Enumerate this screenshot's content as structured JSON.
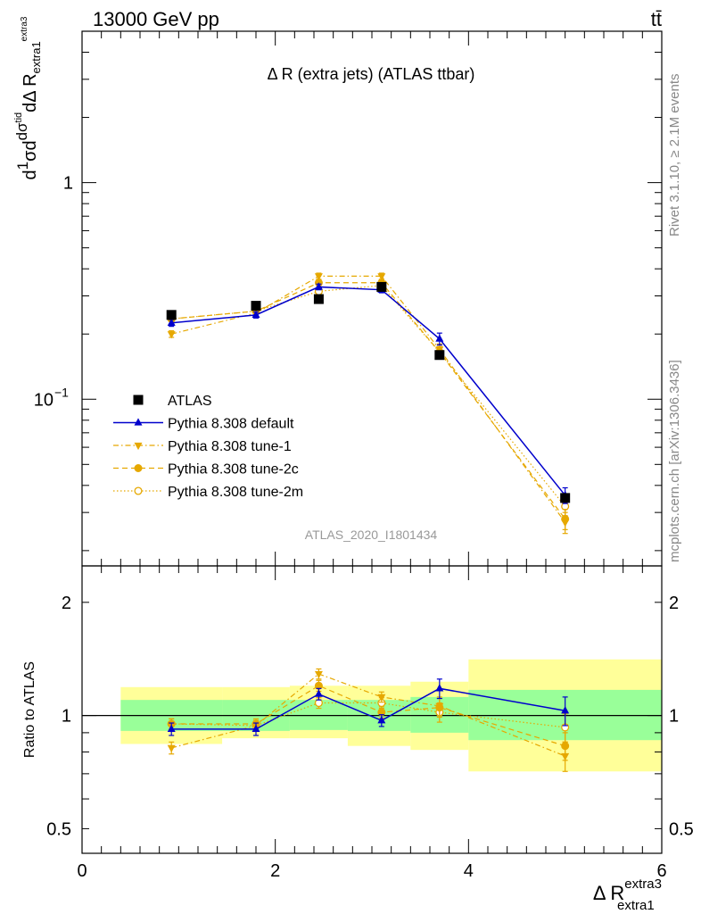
{
  "header": {
    "left_text": "13000 GeV pp",
    "right_text": "tt̄"
  },
  "side_labels": {
    "rivet": "Rivet 3.1.10, ≥ 2.1M events",
    "mcplots": "mcplots.cern.ch [arXiv:1306.3436]"
  },
  "chart_data": [
    {
      "type": "scatter",
      "panel": "main",
      "title": "Δ R (extra jets) (ATLAS ttbar)",
      "watermark": "ATLAS_2020_I1801434",
      "ylabel_parts": {
        "d": "d",
        "sigma": "σ",
        "one": "1",
        "dsigma": "dσ",
        "tid": "tid",
        "dDeltaR": "dΔ R",
        "sub": "extra1",
        "sup": "extra3"
      },
      "yscale": "log",
      "ylim": [
        0.017,
        5.0
      ],
      "xlim": [
        0,
        6
      ],
      "ytick_labels": [
        {
          "value": 1,
          "label": "1"
        },
        {
          "value": 0.1,
          "label": "10",
          "exp": "−1"
        }
      ],
      "x": [
        0.925,
        1.8,
        2.45,
        3.1,
        3.7,
        5.0
      ],
      "x_err": [
        0.525,
        0.35,
        0.3,
        0.35,
        0.3,
        1.0
      ],
      "legend_position": "lower-left",
      "series": [
        {
          "name": "ATLAS",
          "values": [
            0.245,
            0.27,
            0.29,
            0.33,
            0.16,
            0.035
          ],
          "color": "#000000",
          "marker": "square",
          "line": "none"
        },
        {
          "name": "Pythia 8.308 default",
          "values": [
            0.225,
            0.245,
            0.33,
            0.32,
            0.19,
            0.036
          ],
          "errors": [
            0.008,
            0.008,
            0.01,
            0.01,
            0.012,
            0.003
          ],
          "color": "#0000cc",
          "marker": "triangle-up",
          "line": "solid"
        },
        {
          "name": "Pythia 8.308 tune-1",
          "values": [
            0.2,
            0.25,
            0.37,
            0.37,
            0.17,
            0.027
          ],
          "errors": [
            0.007,
            0.008,
            0.012,
            0.012,
            0.01,
            0.003
          ],
          "color": "#e6a800",
          "marker": "triangle-down",
          "line": "dashdot"
        },
        {
          "name": "Pythia 8.308 tune-2c",
          "values": [
            0.235,
            0.255,
            0.345,
            0.345,
            0.165,
            0.028
          ],
          "errors": [
            0.007,
            0.008,
            0.011,
            0.011,
            0.01,
            0.003
          ],
          "color": "#e6a800",
          "marker": "circle",
          "line": "dashed"
        },
        {
          "name": "Pythia 8.308 tune-2m",
          "values": [
            0.235,
            0.255,
            0.315,
            0.335,
            0.165,
            0.032
          ],
          "errors": [
            0.007,
            0.008,
            0.01,
            0.011,
            0.01,
            0.003
          ],
          "color": "#e6a800",
          "marker": "circle-open",
          "line": "dotted"
        }
      ]
    },
    {
      "type": "scatter",
      "panel": "ratio",
      "ylabel": "Ratio to ATLAS",
      "xlabel_parts": {
        "main": "Δ R",
        "sub": "extra1",
        "sup": "extra3"
      },
      "yscale": "log",
      "ylim": [
        0.43,
        2.5
      ],
      "xlim": [
        0,
        6
      ],
      "ytick_labels": [
        {
          "value": 2,
          "label": "2"
        },
        {
          "value": 1,
          "label": "1"
        },
        {
          "value": 0.5,
          "label": "0.5"
        }
      ],
      "xtick_labels": [
        {
          "value": 0,
          "label": "0"
        },
        {
          "value": 2,
          "label": "2"
        },
        {
          "value": 4,
          "label": "4"
        },
        {
          "value": 6,
          "label": "6"
        }
      ],
      "bands": [
        {
          "x_lo": 0.4,
          "x_hi": 1.45,
          "green_lo": 0.91,
          "green_hi": 1.1,
          "yellow_lo": 0.84,
          "yellow_hi": 1.19
        },
        {
          "x_lo": 1.45,
          "x_hi": 2.15,
          "green_lo": 0.91,
          "green_hi": 1.1,
          "yellow_lo": 0.87,
          "yellow_hi": 1.19
        },
        {
          "x_lo": 2.15,
          "x_hi": 2.75,
          "green_lo": 0.915,
          "green_hi": 1.1,
          "yellow_lo": 0.87,
          "yellow_hi": 1.2
        },
        {
          "x_lo": 2.75,
          "x_hi": 3.4,
          "green_lo": 0.91,
          "green_hi": 1.1,
          "yellow_lo": 0.83,
          "yellow_hi": 1.2
        },
        {
          "x_lo": 3.4,
          "x_hi": 4.0,
          "green_lo": 0.9,
          "green_hi": 1.12,
          "yellow_lo": 0.81,
          "yellow_hi": 1.23
        },
        {
          "x_lo": 4.0,
          "x_hi": 6.0,
          "green_lo": 0.86,
          "green_hi": 1.17,
          "yellow_lo": 0.71,
          "yellow_hi": 1.41
        }
      ],
      "x": [
        0.925,
        1.8,
        2.45,
        3.1,
        3.7,
        5.0
      ],
      "series": [
        {
          "name": "Pythia 8.308 default",
          "values": [
            0.92,
            0.92,
            1.14,
            0.97,
            1.18,
            1.03
          ],
          "errors": [
            0.035,
            0.035,
            0.04,
            0.035,
            0.07,
            0.09
          ],
          "color": "#0000cc",
          "marker": "triangle-up",
          "line": "solid"
        },
        {
          "name": "Pythia 8.308 tune-1",
          "values": [
            0.82,
            0.94,
            1.29,
            1.12,
            1.06,
            0.78
          ],
          "errors": [
            0.03,
            0.03,
            0.04,
            0.035,
            0.06,
            0.07
          ],
          "color": "#e6a800",
          "marker": "triangle-down",
          "line": "dashdot"
        },
        {
          "name": "Pythia 8.308 tune-2c",
          "values": [
            0.95,
            0.95,
            1.2,
            1.02,
            1.05,
            0.83
          ],
          "errors": [
            0.03,
            0.03,
            0.04,
            0.035,
            0.06,
            0.07
          ],
          "color": "#e6a800",
          "marker": "circle",
          "line": "dashed"
        },
        {
          "name": "Pythia 8.308 tune-2m",
          "values": [
            0.95,
            0.94,
            1.08,
            1.08,
            1.02,
            0.93
          ],
          "errors": [
            0.03,
            0.03,
            0.035,
            0.035,
            0.06,
            0.08
          ],
          "color": "#e6a800",
          "marker": "circle-open",
          "line": "dotted"
        }
      ]
    }
  ]
}
